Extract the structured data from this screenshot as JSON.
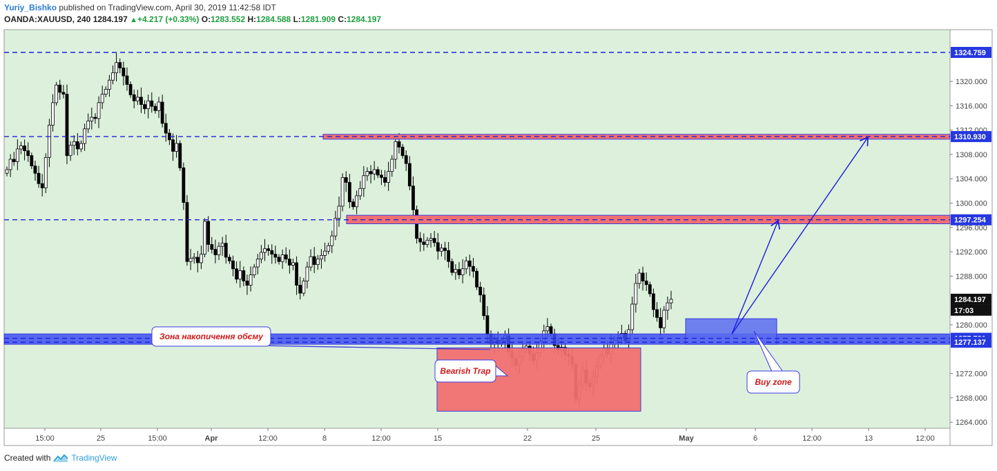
{
  "header": {
    "author": "Yuriy_Bishko",
    "published_text": "published on TradingView.com, April 30, 2019 11:42:58 IDT",
    "symbol": "OANDA:XAUUSD, 240",
    "last": "1284.197",
    "change": "+4.217 (+0.33%)",
    "open_label": "O:",
    "open": "1283.552",
    "high_label": "H:",
    "high": "1284.588",
    "low_label": "L:",
    "low": "1281.909",
    "close_label": "C:",
    "close": "1284.197"
  },
  "footer": {
    "created_with": "Created with",
    "brand": "TradingView"
  },
  "colors": {
    "background": "#dcf0dc",
    "dashed_line": "#1f1fd6",
    "resistance_fill": "#f07070",
    "support_band": "#3d4ff2",
    "annotation_text": "#d01818"
  },
  "chart_data": {
    "type": "candlestick",
    "title": "",
    "xlabel": "",
    "ylabel": "",
    "x_ticks": [
      "15:00",
      "25",
      "15:00",
      "Apr",
      "12:00",
      "8",
      "12:00",
      "15",
      "22",
      "25",
      "May",
      "6",
      "12:00",
      "13",
      "12:00"
    ],
    "y_ticks": [
      "1320.000",
      "1316.000",
      "1312.000",
      "1308.000",
      "1304.000",
      "1300.000",
      "1296.000",
      "1292.000",
      "1288.000",
      "1280.000",
      "1272.000",
      "1268.000",
      "1264.000"
    ],
    "ylim": [
      1263,
      1328.5
    ],
    "price_labels": [
      {
        "value": 1324.759,
        "text": "1324.759",
        "style": "blue"
      },
      {
        "value": 1310.93,
        "text": "1310.930",
        "style": "blue"
      },
      {
        "value": 1297.254,
        "text": "1297.254",
        "style": "blue"
      },
      {
        "value": 1284.197,
        "text": "1284.197",
        "style": "black"
      },
      {
        "value": 1282.4,
        "text": "17:03",
        "style": "black"
      },
      {
        "value": 1277.781,
        "text": "1277.781",
        "style": "blue"
      },
      {
        "value": 1277.137,
        "text": "1277.137",
        "style": "blue"
      }
    ],
    "horizontal_levels": [
      1324.759,
      1310.93,
      1297.254,
      1277.781,
      1277.137
    ],
    "zones": [
      {
        "name": "resistance-zone-upper",
        "top": 1311.3,
        "bottom": 1310.5,
        "kind": "resistance"
      },
      {
        "name": "resistance-zone-lower",
        "top": 1298.0,
        "bottom": 1296.6,
        "kind": "resistance"
      },
      {
        "name": "support-band",
        "top": 1278.5,
        "bottom": 1276.8,
        "kind": "support"
      },
      {
        "name": "bearish-trap-zone",
        "top": 1276.2,
        "bottom": 1265.8,
        "kind": "trap"
      },
      {
        "name": "buy-zone",
        "top": 1281.0,
        "bottom": 1276.8,
        "kind": "buy"
      }
    ],
    "annotations": [
      {
        "name": "accumulation-label",
        "text": "Зона накопичення обєму"
      },
      {
        "name": "bearish-trap-label",
        "text": "Bearish Trap"
      },
      {
        "name": "buy-zone-label",
        "text": "Buy zone"
      }
    ],
    "closes": [
      1305.5,
      1307.2,
      1306.8,
      1308.9,
      1309.4,
      1308.6,
      1307.8,
      1306.1,
      1304.9,
      1303.2,
      1302.5,
      1307.5,
      1312.8,
      1316.5,
      1319.4,
      1318.2,
      1317.9,
      1307.8,
      1309.5,
      1310.1,
      1308.9,
      1309.8,
      1312.2,
      1313.5,
      1314.1,
      1313.9,
      1316.5,
      1317.9,
      1318.7,
      1320.2,
      1321.4,
      1323.1,
      1322.2,
      1320.9,
      1319.5,
      1317.8,
      1316.8,
      1317.4,
      1316.2,
      1315.5,
      1316.8,
      1315.9,
      1315.2,
      1316.6,
      1313.1,
      1311.5,
      1310.4,
      1308.5,
      1309.8,
      1305.8,
      1300.1,
      1290.4,
      1290.9,
      1291.1,
      1290.2,
      1291.6,
      1297.0,
      1293.2,
      1292.4,
      1291.5,
      1292.9,
      1293.4,
      1291.1,
      1290.5,
      1289.2,
      1287.5,
      1288.9,
      1287.2,
      1286.5,
      1288.2,
      1289.5,
      1290.8,
      1291.9,
      1292.5,
      1292.2,
      1291.6,
      1291.1,
      1290.4,
      1291.5,
      1290.8,
      1289.8,
      1290.2,
      1286.5,
      1285.2,
      1287.2,
      1289.5,
      1291.2,
      1289.9,
      1290.8,
      1291.4,
      1292.1,
      1293.0,
      1294.6,
      1297.5,
      1299.5,
      1304.2,
      1303.4,
      1300.2,
      1299.4,
      1301.2,
      1302.4,
      1304.5,
      1305.2,
      1304.8,
      1305.5,
      1304.6,
      1304.2,
      1303.4,
      1305.2,
      1307.2,
      1310.1,
      1309.2,
      1307.8,
      1306.5,
      1302.8,
      1298.9,
      1294.2,
      1293.6,
      1293.2,
      1293.9,
      1294.2,
      1293.5,
      1292.1,
      1292.6,
      1292.2,
      1290.4,
      1288.6,
      1289.1,
      1288.2,
      1289.2,
      1290.5,
      1289.6,
      1288.8,
      1286.2,
      1284.9,
      1281.5,
      1278.4,
      1276.8,
      1277.5,
      1276.9,
      1277.4,
      1278.2,
      1275.6,
      1274.5,
      1273.4,
      1274.8,
      1275.9,
      1276.5,
      1275.2,
      1274.1,
      1275.4,
      1277.2,
      1279.0,
      1279.7,
      1278.5,
      1276.6,
      1275.8,
      1276.3,
      1275.1,
      1274.8,
      1273.5,
      1267.8,
      1270.1,
      1272.6,
      1270.4,
      1269.8,
      1271.5,
      1273.2,
      1274.9,
      1276.1,
      1275.2,
      1276.8,
      1277.5,
      1277.9,
      1278.6,
      1277.4,
      1279.2,
      1283.4,
      1286.8,
      1288.5,
      1287.2,
      1286.6,
      1285.1,
      1282.5,
      1281.2,
      1279.5,
      1282.4,
      1283.6,
      1284.197
    ]
  }
}
